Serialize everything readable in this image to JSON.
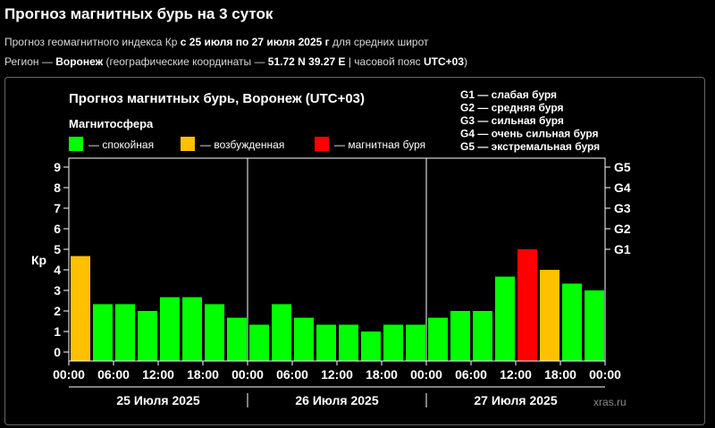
{
  "header": {
    "title": "Прогноз магнитных бурь на 3 суток",
    "line1_a": "Прогноз геомагнитного индекса Кр ",
    "line1_b": "с 25 июля по 27 июля 2025 г",
    "line1_c": " для средних широт",
    "line2_a": "Регион — ",
    "line2_b": "Воронеж",
    "line2_c": " (географические координаты — ",
    "line2_d": "51.72 N 39.27 E",
    "line2_e": " | часовой пояс ",
    "line2_f": "UTC+03",
    "line2_g": ")"
  },
  "legend": {
    "heading": "Магнитосфера",
    "items": [
      {
        "label": "— спокойная",
        "color": "#00ff00"
      },
      {
        "label": "— возбужденная",
        "color": "#ffc000"
      },
      {
        "label": "— магнитная буря",
        "color": "#ff0000"
      }
    ]
  },
  "storm_levels": [
    "G1 — слабая буря",
    "G2 — средняя буря",
    "G3 — сильная буря",
    "G4 — очень сильная буря",
    "G5 — экстремальная буря"
  ],
  "watermark": "xras.ru",
  "colors": {
    "quiet": "#00ff00",
    "active": "#ffc000",
    "storm": "#ff0000"
  },
  "chart_data": {
    "type": "bar",
    "title": "Прогноз магнитных бурь, Воронеж (UTC+03)",
    "ylabel": "Кр",
    "ylim": [
      0,
      9
    ],
    "y_ticks": [
      "0",
      "1",
      "2",
      "3",
      "4",
      "5",
      "6",
      "7",
      "8",
      "9"
    ],
    "right_ticks": [
      {
        "label": "G1",
        "value": 5
      },
      {
        "label": "G2",
        "value": 6
      },
      {
        "label": "G3",
        "value": 7
      },
      {
        "label": "G4",
        "value": 8
      },
      {
        "label": "G5",
        "value": 9
      }
    ],
    "x_ticks": [
      "00:00",
      "06:00",
      "12:00",
      "18:00",
      "00:00",
      "06:00",
      "12:00",
      "18:00",
      "00:00",
      "06:00",
      "12:00",
      "18:00",
      "00:00"
    ],
    "days": [
      "25 Июля 2025",
      "26 Июля 2025",
      "27 Июля 2025"
    ],
    "values": [
      4.67,
      2.33,
      2.33,
      2.0,
      2.67,
      2.67,
      2.33,
      1.67,
      1.33,
      2.33,
      1.67,
      1.33,
      1.33,
      1.0,
      1.33,
      1.33,
      1.67,
      2.0,
      2.0,
      3.67,
      5.0,
      4.0,
      3.33,
      3.0
    ],
    "levels": [
      "active",
      "quiet",
      "quiet",
      "quiet",
      "quiet",
      "quiet",
      "quiet",
      "quiet",
      "quiet",
      "quiet",
      "quiet",
      "quiet",
      "quiet",
      "quiet",
      "quiet",
      "quiet",
      "quiet",
      "quiet",
      "quiet",
      "quiet",
      "storm",
      "active",
      "quiet",
      "quiet"
    ],
    "grid": false
  }
}
